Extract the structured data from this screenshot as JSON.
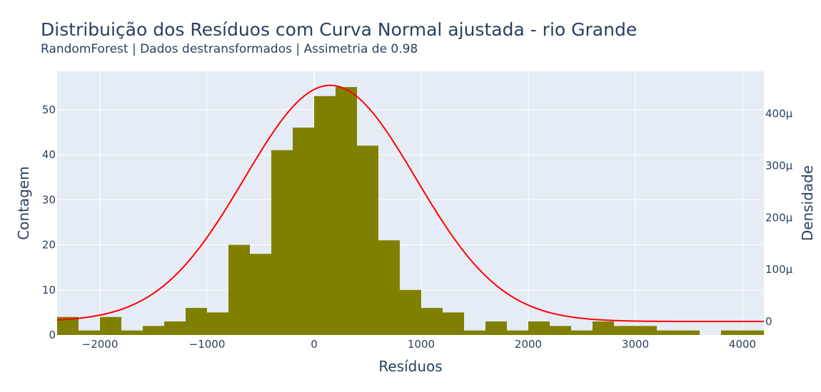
{
  "chart_data": {
    "type": "bar",
    "title": "Distribuição dos Resíduos com Curva Normal ajustada - rio Grande",
    "subtitle": "RandomForest | Dados destransformados | Assimetria de 0.98",
    "xlabel": "Resíduos",
    "ylabel": "Contagem",
    "y2label": "Densidade",
    "xlim": [
      -2400,
      4200
    ],
    "ylim": [
      0,
      58.5
    ],
    "y2lim": [
      -2.6e-05,
      0.000482
    ],
    "grid": true,
    "x_ticks": [
      -2000,
      -1000,
      0,
      1000,
      2000,
      3000,
      4000
    ],
    "x_tick_labels": [
      "−2000",
      "−1000",
      "0",
      "1000",
      "2000",
      "3000",
      "4000"
    ],
    "y_ticks": [
      0,
      10,
      20,
      30,
      40,
      50
    ],
    "y_tick_labels": [
      "0",
      "10",
      "20",
      "30",
      "40",
      "50"
    ],
    "y2_ticks": [
      0,
      0.0001,
      0.0002,
      0.0003,
      0.0004
    ],
    "y2_tick_labels": [
      "0",
      "100μ",
      "200μ",
      "300μ",
      "400μ"
    ],
    "bin_width": 200,
    "bin_edges_start": -2400,
    "counts": [
      4,
      1,
      4,
      1,
      2,
      3,
      6,
      5,
      20,
      18,
      41,
      46,
      53,
      55,
      42,
      21,
      10,
      6,
      5,
      1,
      3,
      1,
      3,
      2,
      1,
      3,
      2,
      2,
      1,
      1,
      0,
      1,
      1
    ],
    "series": [
      {
        "type": "histogram",
        "color": "#808000"
      },
      {
        "type": "line",
        "color": "#ff0000",
        "mean": 150,
        "std": 800,
        "amplitude": 0.000455,
        "x_range": [
          -2400,
          4200
        ]
      }
    ]
  }
}
